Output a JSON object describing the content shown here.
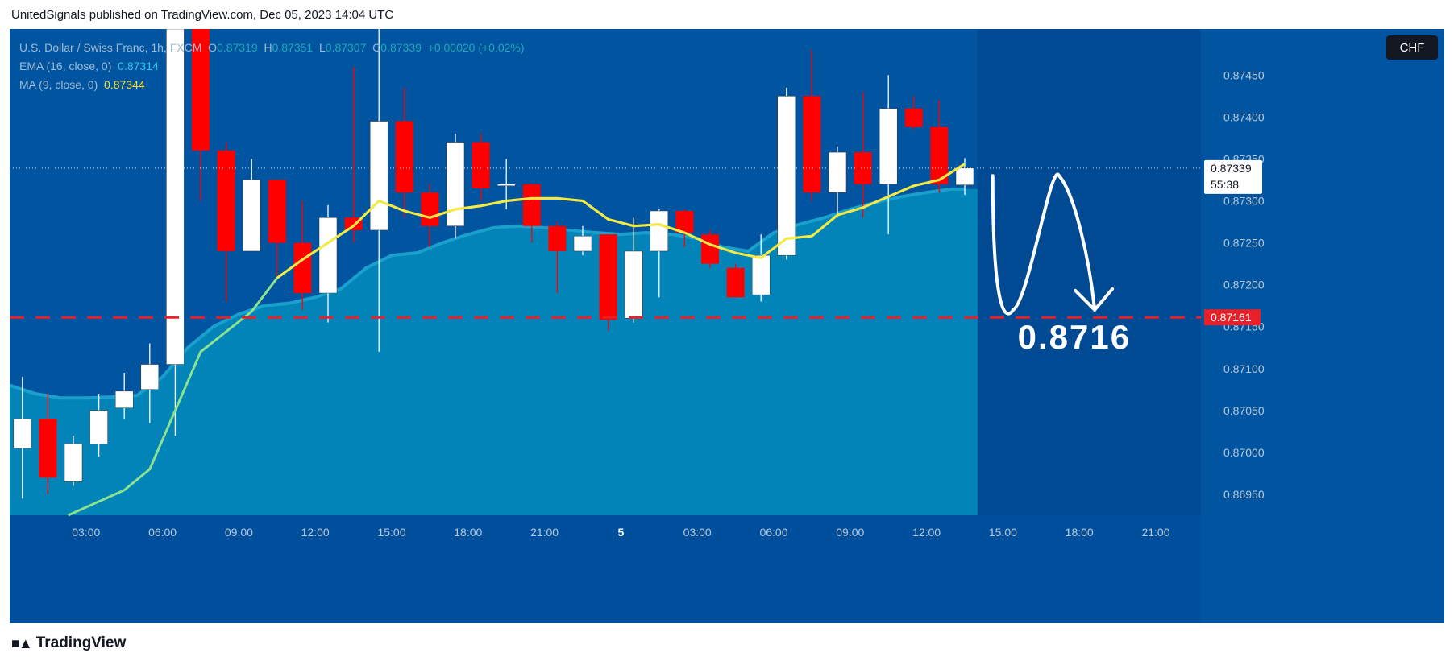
{
  "header": {
    "publish_line": "UnitedSignals published on TradingView.com, Dec 05, 2023 14:04 UTC"
  },
  "legend": {
    "symbol": "U.S. Dollar / Swiss Franc, 1h, FXCM",
    "o_label": "O",
    "o_value": "0.87319",
    "h_label": "H",
    "h_value": "0.87351",
    "l_label": "L",
    "l_value": "0.87307",
    "c_label": "C",
    "c_value": "0.87339",
    "change": "+0.00020 (+0.02%)",
    "ema_label": "EMA (16, close, 0)",
    "ema_value": "0.87314",
    "ma_label": "MA (9, close, 0)",
    "ma_value": "0.87344"
  },
  "currency_button": "CHF",
  "footer": {
    "brand": "TradingView"
  },
  "colors": {
    "background": "#0054a0",
    "area_fill": "#0284b8",
    "up_candle": "#ffffff",
    "down_candle": "#ff0000",
    "ma_line": "#f6e942",
    "ema_line": "#8de28f",
    "support_line": "#e8202a",
    "arrow": "#ffffff"
  },
  "chart_data": {
    "type": "candlestick",
    "symbol": "USDCHF",
    "timeframe": "1h",
    "y_range": [
      0.86925,
      0.87505
    ],
    "y_ticks": [
      "0.87450",
      "0.87400",
      "0.87350",
      "0.87300",
      "0.87250",
      "0.87200",
      "0.87150",
      "0.87100",
      "0.87050",
      "0.87000",
      "0.86950"
    ],
    "x_ticks": [
      "03:00",
      "06:00",
      "09:00",
      "12:00",
      "15:00",
      "18:00",
      "21:00",
      "5",
      "03:00",
      "06:00",
      "09:00",
      "12:00",
      "15:00",
      "18:00",
      "21:00"
    ],
    "x_tick_hours": [
      3,
      6,
      9,
      12,
      15,
      18,
      21,
      24,
      27,
      30,
      33,
      36,
      39,
      42,
      45
    ],
    "candles": [
      {
        "h": 0.5,
        "o": 0.87005,
        "hi": 0.8709,
        "lo": 0.86945,
        "c": 0.8704
      },
      {
        "h": 1.5,
        "o": 0.8704,
        "hi": 0.8707,
        "lo": 0.8695,
        "c": 0.8697
      },
      {
        "h": 2.5,
        "o": 0.86965,
        "hi": 0.8702,
        "lo": 0.8696,
        "c": 0.8701
      },
      {
        "h": 3.5,
        "o": 0.8701,
        "hi": 0.8707,
        "lo": 0.86995,
        "c": 0.8705
      },
      {
        "h": 4.5,
        "o": 0.87053,
        "hi": 0.87095,
        "lo": 0.8704,
        "c": 0.87073
      },
      {
        "h": 5.5,
        "o": 0.87075,
        "hi": 0.8713,
        "lo": 0.87035,
        "c": 0.87105
      },
      {
        "h": 6.5,
        "o": 0.87105,
        "hi": 0.87505,
        "lo": 0.8702,
        "c": 0.87505
      },
      {
        "h": 7.5,
        "o": 0.87505,
        "hi": 0.87505,
        "lo": 0.873,
        "c": 0.8736
      },
      {
        "h": 8.5,
        "o": 0.8736,
        "hi": 0.8737,
        "lo": 0.8718,
        "c": 0.8724
      },
      {
        "h": 9.5,
        "o": 0.8724,
        "hi": 0.8735,
        "lo": 0.8724,
        "c": 0.87325
      },
      {
        "h": 10.5,
        "o": 0.87325,
        "hi": 0.87325,
        "lo": 0.87205,
        "c": 0.8725
      },
      {
        "h": 11.5,
        "o": 0.8725,
        "hi": 0.873,
        "lo": 0.8717,
        "c": 0.8719
      },
      {
        "h": 12.5,
        "o": 0.8719,
        "hi": 0.87295,
        "lo": 0.87155,
        "c": 0.8728
      },
      {
        "h": 13.5,
        "o": 0.8728,
        "hi": 0.8746,
        "lo": 0.8725,
        "c": 0.87265
      },
      {
        "h": 14.5,
        "o": 0.87265,
        "hi": 0.87505,
        "lo": 0.8712,
        "c": 0.87395
      },
      {
        "h": 15.5,
        "o": 0.87395,
        "hi": 0.87435,
        "lo": 0.8728,
        "c": 0.8731
      },
      {
        "h": 16.5,
        "o": 0.8731,
        "hi": 0.8732,
        "lo": 0.87245,
        "c": 0.8727
      },
      {
        "h": 17.5,
        "o": 0.8727,
        "hi": 0.8738,
        "lo": 0.87255,
        "c": 0.8737
      },
      {
        "h": 18.5,
        "o": 0.8737,
        "hi": 0.8738,
        "lo": 0.873,
        "c": 0.87315
      },
      {
        "h": 19.5,
        "o": 0.87318,
        "hi": 0.8735,
        "lo": 0.8729,
        "c": 0.8732
      },
      {
        "h": 20.5,
        "o": 0.8732,
        "hi": 0.8732,
        "lo": 0.8725,
        "c": 0.8727
      },
      {
        "h": 21.5,
        "o": 0.8727,
        "hi": 0.87275,
        "lo": 0.8719,
        "c": 0.8724
      },
      {
        "h": 22.5,
        "o": 0.8724,
        "hi": 0.8727,
        "lo": 0.87235,
        "c": 0.87258
      },
      {
        "h": 23.5,
        "o": 0.8726,
        "hi": 0.8726,
        "lo": 0.87145,
        "c": 0.87158
      },
      {
        "h": 24.5,
        "o": 0.8716,
        "hi": 0.8728,
        "lo": 0.87155,
        "c": 0.8724
      },
      {
        "h": 25.5,
        "o": 0.8724,
        "hi": 0.8729,
        "lo": 0.87185,
        "c": 0.87288
      },
      {
        "h": 26.5,
        "o": 0.87288,
        "hi": 0.8729,
        "lo": 0.87245,
        "c": 0.87262
      },
      {
        "h": 27.5,
        "o": 0.8726,
        "hi": 0.87265,
        "lo": 0.8722,
        "c": 0.87225
      },
      {
        "h": 28.5,
        "o": 0.8722,
        "hi": 0.87225,
        "lo": 0.87185,
        "c": 0.87185
      },
      {
        "h": 29.5,
        "o": 0.87188,
        "hi": 0.8726,
        "lo": 0.8718,
        "c": 0.87235
      },
      {
        "h": 30.5,
        "o": 0.87235,
        "hi": 0.87435,
        "lo": 0.8723,
        "c": 0.87425
      },
      {
        "h": 31.5,
        "o": 0.87425,
        "hi": 0.8748,
        "lo": 0.873,
        "c": 0.8731
      },
      {
        "h": 32.5,
        "o": 0.8731,
        "hi": 0.87365,
        "lo": 0.8728,
        "c": 0.87358
      },
      {
        "h": 33.5,
        "o": 0.87358,
        "hi": 0.8743,
        "lo": 0.8728,
        "c": 0.8732
      },
      {
        "h": 34.5,
        "o": 0.8732,
        "hi": 0.8745,
        "lo": 0.8726,
        "c": 0.8741
      },
      {
        "h": 35.5,
        "o": 0.8741,
        "hi": 0.87425,
        "lo": 0.87385,
        "c": 0.87388
      },
      {
        "h": 36.5,
        "o": 0.87388,
        "hi": 0.8742,
        "lo": 0.8731,
        "c": 0.8732
      },
      {
        "h": 37.5,
        "o": 0.87319,
        "hi": 0.87351,
        "lo": 0.87307,
        "c": 0.87339
      }
    ],
    "ma": {
      "name": "MA (9, close, 0)",
      "points": [
        [
          2.3,
          0.86925
        ],
        [
          4.5,
          0.86955
        ],
        [
          5.5,
          0.8698
        ],
        [
          7.5,
          0.8712
        ],
        [
          9.5,
          0.87168
        ],
        [
          10.5,
          0.87208
        ],
        [
          11.5,
          0.8723
        ],
        [
          12.5,
          0.8725
        ],
        [
          13.5,
          0.8727
        ],
        [
          14.5,
          0.873
        ],
        [
          15.5,
          0.87288
        ],
        [
          16.5,
          0.8728
        ],
        [
          17.5,
          0.8729
        ],
        [
          18.5,
          0.87294
        ],
        [
          19.5,
          0.873
        ],
        [
          20.5,
          0.87303
        ],
        [
          21.5,
          0.87303
        ],
        [
          22.5,
          0.873
        ],
        [
          23.5,
          0.87278
        ],
        [
          24.5,
          0.8727
        ],
        [
          25.5,
          0.87272
        ],
        [
          26.5,
          0.87262
        ],
        [
          27.5,
          0.87248
        ],
        [
          28.5,
          0.87238
        ],
        [
          29.5,
          0.87232
        ],
        [
          30.5,
          0.87255
        ],
        [
          31.5,
          0.87258
        ],
        [
          32.5,
          0.87283
        ],
        [
          33.5,
          0.87292
        ],
        [
          34.5,
          0.87305
        ],
        [
          35.5,
          0.87318
        ],
        [
          36.5,
          0.87325
        ],
        [
          37.5,
          0.87344
        ]
      ]
    },
    "ema": {
      "name": "EMA (16, close, 0)",
      "points": [
        [
          0,
          0.8708
        ],
        [
          1,
          0.8707
        ],
        [
          2,
          0.87065
        ],
        [
          3,
          0.87065
        ],
        [
          4,
          0.87066
        ],
        [
          5,
          0.87068
        ],
        [
          6,
          0.8709
        ],
        [
          7,
          0.87125
        ],
        [
          8,
          0.8715
        ],
        [
          9,
          0.87165
        ],
        [
          10,
          0.87175
        ],
        [
          11,
          0.87178
        ],
        [
          12,
          0.87185
        ],
        [
          13,
          0.87195
        ],
        [
          14,
          0.8722
        ],
        [
          15,
          0.87235
        ],
        [
          16,
          0.87238
        ],
        [
          17,
          0.8725
        ],
        [
          18,
          0.8726
        ],
        [
          19,
          0.87268
        ],
        [
          20,
          0.8727
        ],
        [
          21,
          0.87268
        ],
        [
          22,
          0.87265
        ],
        [
          23,
          0.87262
        ],
        [
          24,
          0.8726
        ],
        [
          25,
          0.87262
        ],
        [
          26,
          0.8726
        ],
        [
          27,
          0.87255
        ],
        [
          28,
          0.87245
        ],
        [
          29,
          0.8724
        ],
        [
          30,
          0.87262
        ],
        [
          31,
          0.87272
        ],
        [
          32,
          0.8728
        ],
        [
          33,
          0.8729
        ],
        [
          34,
          0.87298
        ],
        [
          35,
          0.87305
        ],
        [
          36,
          0.8731
        ],
        [
          37,
          0.87314
        ],
        [
          37.5,
          0.87314
        ]
      ]
    },
    "support": {
      "value": 0.87161,
      "label": "0.87161"
    },
    "price_tag": {
      "value": 0.87339,
      "label": "0.87339",
      "countdown": "55:38"
    },
    "target_annotation": "0.8716",
    "projection_path": [
      [
        38.6,
        0.8733
      ],
      [
        39.4,
        0.8717
      ],
      [
        40.5,
        0.872
      ],
      [
        41.6,
        0.8733
      ],
      [
        42.6,
        0.8717
      ]
    ]
  }
}
